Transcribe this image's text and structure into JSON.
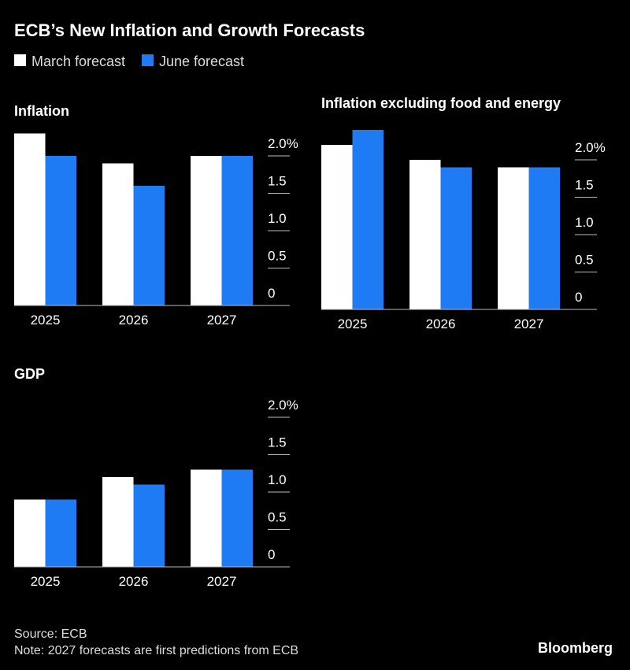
{
  "title": "ECB’s New Inflation and Growth Forecasts",
  "chart_data": [
    {
      "type": "bar",
      "title": "Inflation",
      "categories": [
        "2025",
        "2026",
        "2027"
      ],
      "series": [
        {
          "name": "March forecast",
          "color": "#ffffff",
          "values": [
            2.3,
            1.9,
            2.0
          ]
        },
        {
          "name": "June forecast",
          "color": "#1f7bf4",
          "values": [
            2.0,
            1.6,
            2.0
          ]
        }
      ],
      "ylim": [
        0,
        2.4
      ],
      "yticks": [
        0,
        0.5,
        {
          "value": 1,
          "label": "1.0"
        },
        1.5,
        {
          "value": 2,
          "label": "2.0%"
        }
      ]
    },
    {
      "type": "bar",
      "title": "Inflation excluding food and energy",
      "categories": [
        "2025",
        "2026",
        "2027"
      ],
      "series": [
        {
          "name": "March forecast",
          "color": "#ffffff",
          "values": [
            2.2,
            2.0,
            1.9
          ]
        },
        {
          "name": "June forecast",
          "color": "#1f7bf4",
          "values": [
            2.4,
            1.9,
            1.9
          ]
        }
      ],
      "ylim": [
        0,
        2.4
      ],
      "yticks": [
        0,
        0.5,
        {
          "value": 1,
          "label": "1.0"
        },
        1.5,
        {
          "value": 2,
          "label": "2.0%"
        }
      ]
    },
    {
      "type": "bar",
      "title": "GDP",
      "categories": [
        "2025",
        "2026",
        "2027"
      ],
      "series": [
        {
          "name": "March forecast",
          "color": "#ffffff",
          "values": [
            0.9,
            1.2,
            1.3
          ]
        },
        {
          "name": "June forecast",
          "color": "#1f7bf4",
          "values": [
            0.9,
            1.1,
            1.3
          ]
        }
      ],
      "ylim": [
        0,
        2.4
      ],
      "yticks": [
        0,
        0.5,
        {
          "value": 1,
          "label": "1.0"
        },
        1.5,
        {
          "value": 2,
          "label": "2.0%"
        }
      ]
    }
  ],
  "source": "Source: ECB",
  "note": "Note: 2027 forecasts are first predictions from ECB",
  "logo": "Bloomberg"
}
